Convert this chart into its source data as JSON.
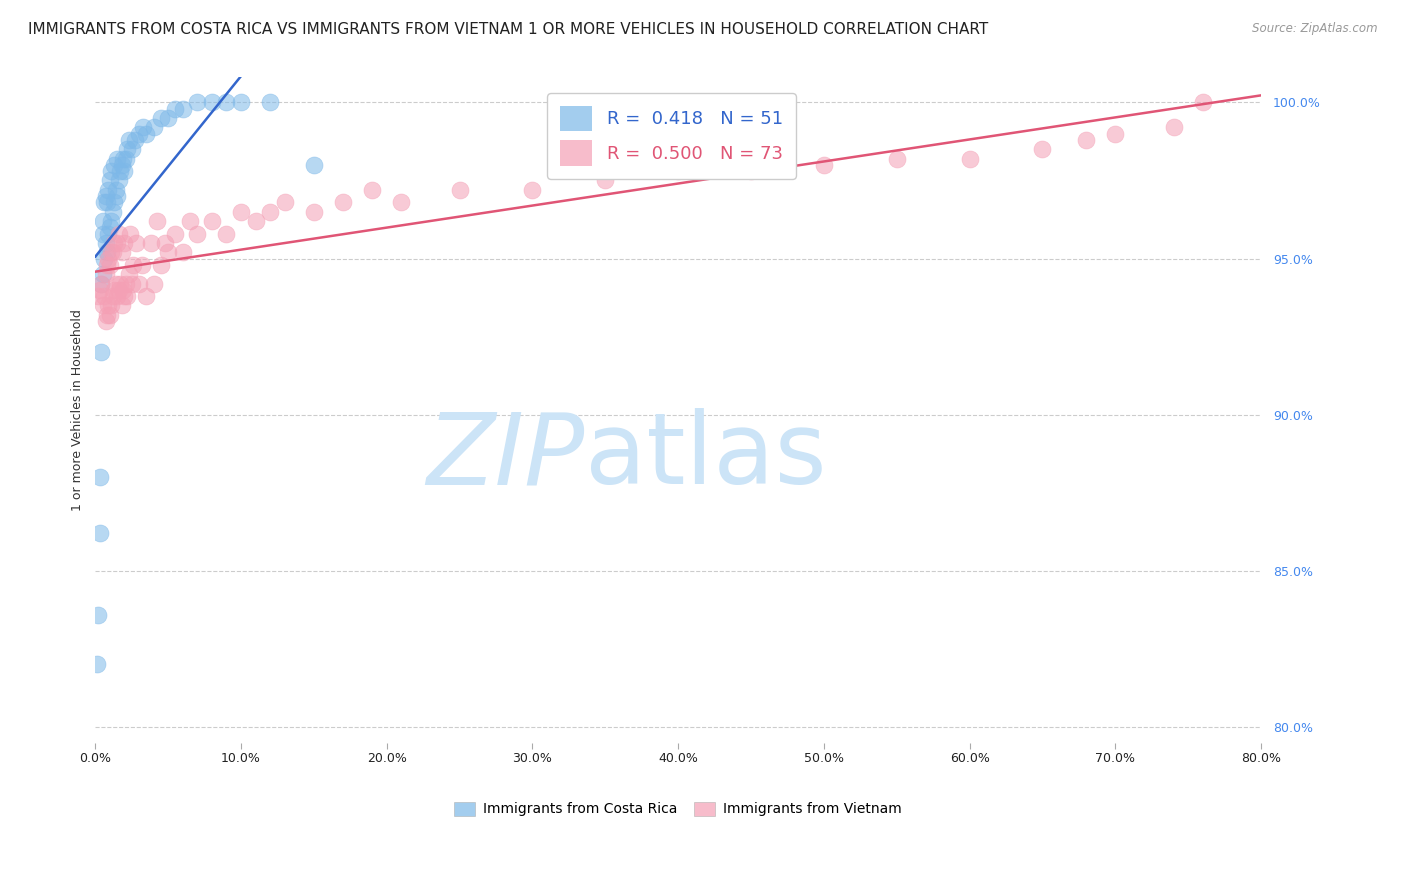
{
  "title": "IMMIGRANTS FROM COSTA RICA VS IMMIGRANTS FROM VIETNAM 1 OR MORE VEHICLES IN HOUSEHOLD CORRELATION CHART",
  "source": "Source: ZipAtlas.com",
  "ylabel": "1 or more Vehicles in Household",
  "xlim": [
    0.0,
    0.8
  ],
  "ylim": [
    0.795,
    1.008
  ],
  "xtick_labels": [
    "0.0%",
    "10.0%",
    "20.0%",
    "30.0%",
    "40.0%",
    "50.0%",
    "60.0%",
    "70.0%",
    "80.0%"
  ],
  "xtick_vals": [
    0.0,
    0.1,
    0.2,
    0.3,
    0.4,
    0.5,
    0.6,
    0.7,
    0.8
  ],
  "ytick_labels": [
    "80.0%",
    "85.0%",
    "90.0%",
    "95.0%",
    "100.0%"
  ],
  "ytick_vals": [
    0.8,
    0.85,
    0.9,
    0.95,
    1.0
  ],
  "blue_R": 0.418,
  "blue_N": 51,
  "pink_R": 0.5,
  "pink_N": 73,
  "blue_color": "#7db8e8",
  "pink_color": "#f4a0b5",
  "blue_line_color": "#3366cc",
  "pink_line_color": "#e05575",
  "watermark_zip": "ZIP",
  "watermark_atlas": "atlas",
  "watermark_color": "#cce4f7",
  "background_color": "#ffffff",
  "grid_color": "#cccccc",
  "title_fontsize": 11,
  "axis_label_fontsize": 9,
  "tick_fontsize": 9,
  "legend_fontsize": 13,
  "blue_x": [
    0.001,
    0.002,
    0.003,
    0.003,
    0.004,
    0.004,
    0.005,
    0.005,
    0.005,
    0.006,
    0.006,
    0.007,
    0.007,
    0.008,
    0.008,
    0.009,
    0.009,
    0.01,
    0.01,
    0.011,
    0.011,
    0.012,
    0.013,
    0.013,
    0.014,
    0.015,
    0.015,
    0.016,
    0.017,
    0.018,
    0.019,
    0.02,
    0.021,
    0.022,
    0.023,
    0.025,
    0.027,
    0.03,
    0.033,
    0.035,
    0.04,
    0.045,
    0.05,
    0.055,
    0.06,
    0.07,
    0.08,
    0.09,
    0.1,
    0.12,
    0.15
  ],
  "blue_y": [
    0.82,
    0.836,
    0.862,
    0.88,
    0.92,
    0.942,
    0.945,
    0.958,
    0.962,
    0.95,
    0.968,
    0.955,
    0.97,
    0.952,
    0.968,
    0.958,
    0.972,
    0.96,
    0.975,
    0.962,
    0.978,
    0.965,
    0.968,
    0.98,
    0.972,
    0.97,
    0.982,
    0.975,
    0.978,
    0.98,
    0.982,
    0.978,
    0.982,
    0.985,
    0.988,
    0.985,
    0.988,
    0.99,
    0.992,
    0.99,
    0.992,
    0.995,
    0.995,
    0.998,
    0.998,
    1.0,
    1.0,
    1.0,
    1.0,
    1.0,
    0.98
  ],
  "pink_x": [
    0.002,
    0.003,
    0.004,
    0.005,
    0.006,
    0.007,
    0.007,
    0.008,
    0.008,
    0.009,
    0.009,
    0.01,
    0.01,
    0.011,
    0.011,
    0.012,
    0.012,
    0.013,
    0.013,
    0.014,
    0.015,
    0.015,
    0.016,
    0.016,
    0.017,
    0.018,
    0.018,
    0.019,
    0.02,
    0.02,
    0.021,
    0.022,
    0.023,
    0.024,
    0.025,
    0.026,
    0.028,
    0.03,
    0.032,
    0.035,
    0.038,
    0.04,
    0.042,
    0.045,
    0.048,
    0.05,
    0.055,
    0.06,
    0.065,
    0.07,
    0.08,
    0.09,
    0.1,
    0.11,
    0.12,
    0.13,
    0.15,
    0.17,
    0.19,
    0.21,
    0.25,
    0.3,
    0.35,
    0.4,
    0.45,
    0.5,
    0.55,
    0.6,
    0.65,
    0.68,
    0.7,
    0.74,
    0.76
  ],
  "pink_y": [
    0.938,
    0.94,
    0.942,
    0.935,
    0.938,
    0.93,
    0.945,
    0.932,
    0.948,
    0.935,
    0.95,
    0.932,
    0.948,
    0.935,
    0.952,
    0.938,
    0.952,
    0.94,
    0.955,
    0.942,
    0.938,
    0.955,
    0.94,
    0.958,
    0.942,
    0.935,
    0.952,
    0.94,
    0.938,
    0.955,
    0.942,
    0.938,
    0.945,
    0.958,
    0.942,
    0.948,
    0.955,
    0.942,
    0.948,
    0.938,
    0.955,
    0.942,
    0.962,
    0.948,
    0.955,
    0.952,
    0.958,
    0.952,
    0.962,
    0.958,
    0.962,
    0.958,
    0.965,
    0.962,
    0.965,
    0.968,
    0.965,
    0.968,
    0.972,
    0.968,
    0.972,
    0.972,
    0.975,
    0.978,
    0.978,
    0.98,
    0.982,
    0.982,
    0.985,
    0.988,
    0.99,
    0.992,
    1.0
  ]
}
